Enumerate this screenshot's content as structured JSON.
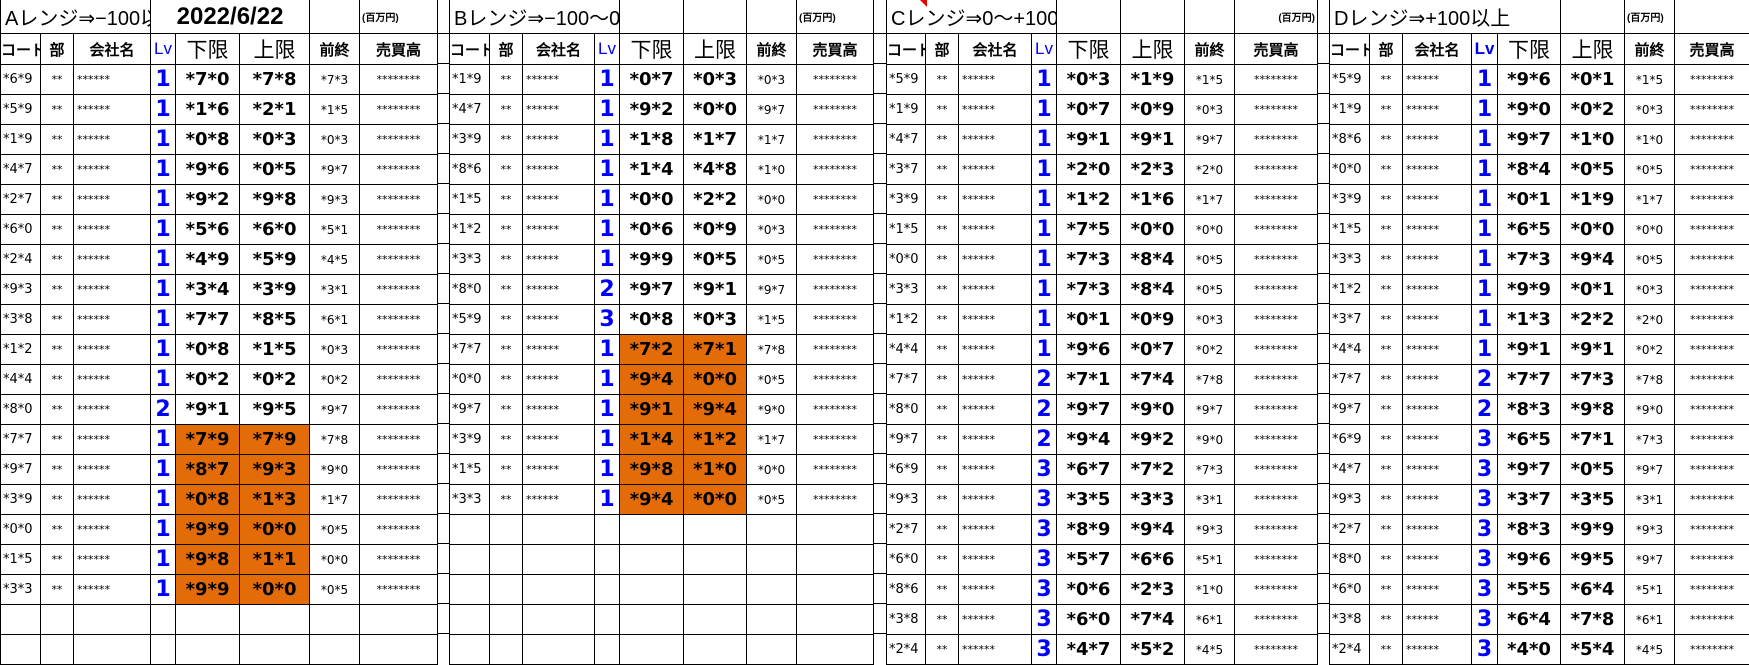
{
  "colors": {
    "highlight": "#e36c09",
    "lv": "#0000ff",
    "comment_marker": "#ee0000"
  },
  "headers": {
    "code": "コード",
    "bu": "部",
    "name": "会社名",
    "lv": "Lv",
    "lower": "下限",
    "upper": "上限",
    "prev": "前終",
    "volume": "売買高"
  },
  "blocks": [
    {
      "title": "Aレンジ⇒−100以",
      "date": "2022/6/22",
      "units": "(百万円)",
      "rows": [
        {
          "code": "*6*9",
          "bu": "**",
          "name": "******",
          "lv": "1",
          "lower": "*7*0",
          "upper": "*7*8",
          "prev": "*7*3",
          "volume": "********",
          "highlight": false
        },
        {
          "code": "*5*9",
          "bu": "**",
          "name": "******",
          "lv": "1",
          "lower": "*1*6",
          "upper": "*2*1",
          "prev": "*1*5",
          "volume": "********",
          "highlight": false
        },
        {
          "code": "*1*9",
          "bu": "**",
          "name": "******",
          "lv": "1",
          "lower": "*0*8",
          "upper": "*0*3",
          "prev": "*0*3",
          "volume": "********",
          "highlight": false
        },
        {
          "code": "*4*7",
          "bu": "**",
          "name": "******",
          "lv": "1",
          "lower": "*9*6",
          "upper": "*0*5",
          "prev": "*9*7",
          "volume": "********",
          "highlight": false
        },
        {
          "code": "*2*7",
          "bu": "**",
          "name": "******",
          "lv": "1",
          "lower": "*9*2",
          "upper": "*9*8",
          "prev": "*9*3",
          "volume": "********",
          "highlight": false
        },
        {
          "code": "*6*0",
          "bu": "**",
          "name": "******",
          "lv": "1",
          "lower": "*5*6",
          "upper": "*6*0",
          "prev": "*5*1",
          "volume": "********",
          "highlight": false
        },
        {
          "code": "*2*4",
          "bu": "**",
          "name": "******",
          "lv": "1",
          "lower": "*4*9",
          "upper": "*5*9",
          "prev": "*4*5",
          "volume": "********",
          "highlight": false
        },
        {
          "code": "*9*3",
          "bu": "**",
          "name": "******",
          "lv": "1",
          "lower": "*3*4",
          "upper": "*3*9",
          "prev": "*3*1",
          "volume": "********",
          "highlight": false
        },
        {
          "code": "*3*8",
          "bu": "**",
          "name": "******",
          "lv": "1",
          "lower": "*7*7",
          "upper": "*8*5",
          "prev": "*6*1",
          "volume": "********",
          "highlight": false
        },
        {
          "code": "*1*2",
          "bu": "**",
          "name": "******",
          "lv": "1",
          "lower": "*0*8",
          "upper": "*1*5",
          "prev": "*0*3",
          "volume": "********",
          "highlight": false
        },
        {
          "code": "*4*4",
          "bu": "**",
          "name": "******",
          "lv": "1",
          "lower": "*0*2",
          "upper": "*0*2",
          "prev": "*0*2",
          "volume": "********",
          "highlight": false
        },
        {
          "code": "*8*0",
          "bu": "**",
          "name": "******",
          "lv": "2",
          "lower": "*9*1",
          "upper": "*9*5",
          "prev": "*9*7",
          "volume": "********",
          "highlight": false
        },
        {
          "code": "*7*7",
          "bu": "**",
          "name": "******",
          "lv": "1",
          "lower": "*7*9",
          "upper": "*7*9",
          "prev": "*7*8",
          "volume": "********",
          "highlight": true
        },
        {
          "code": "*9*7",
          "bu": "**",
          "name": "******",
          "lv": "1",
          "lower": "*8*7",
          "upper": "*9*3",
          "prev": "*9*0",
          "volume": "********",
          "highlight": true
        },
        {
          "code": "*3*9",
          "bu": "**",
          "name": "******",
          "lv": "1",
          "lower": "*0*8",
          "upper": "*1*3",
          "prev": "*1*7",
          "volume": "********",
          "highlight": true
        },
        {
          "code": "*0*0",
          "bu": "**",
          "name": "******",
          "lv": "1",
          "lower": "*9*9",
          "upper": "*0*0",
          "prev": "*0*5",
          "volume": "********",
          "highlight": true
        },
        {
          "code": "*1*5",
          "bu": "**",
          "name": "******",
          "lv": "1",
          "lower": "*9*8",
          "upper": "*1*1",
          "prev": "*0*0",
          "volume": "********",
          "highlight": true
        },
        {
          "code": "*3*3",
          "bu": "**",
          "name": "******",
          "lv": "1",
          "lower": "*9*9",
          "upper": "*0*0",
          "prev": "*0*5",
          "volume": "********",
          "highlight": true
        }
      ]
    },
    {
      "title": "Bレンジ⇒−100〜0",
      "units": "(百万円)",
      "rows": [
        {
          "code": "*1*9",
          "bu": "**",
          "name": "******",
          "lv": "1",
          "lower": "*0*7",
          "upper": "*0*3",
          "prev": "*0*3",
          "volume": "********",
          "highlight": false
        },
        {
          "code": "*4*7",
          "bu": "**",
          "name": "******",
          "lv": "1",
          "lower": "*9*2",
          "upper": "*0*0",
          "prev": "*9*7",
          "volume": "********",
          "highlight": false
        },
        {
          "code": "*3*9",
          "bu": "**",
          "name": "******",
          "lv": "1",
          "lower": "*1*8",
          "upper": "*1*7",
          "prev": "*1*7",
          "volume": "********",
          "highlight": false
        },
        {
          "code": "*8*6",
          "bu": "**",
          "name": "******",
          "lv": "1",
          "lower": "*1*4",
          "upper": "*4*8",
          "prev": "*1*0",
          "volume": "********",
          "highlight": false
        },
        {
          "code": "*1*5",
          "bu": "**",
          "name": "******",
          "lv": "1",
          "lower": "*0*0",
          "upper": "*2*2",
          "prev": "*0*0",
          "volume": "********",
          "highlight": false
        },
        {
          "code": "*1*2",
          "bu": "**",
          "name": "******",
          "lv": "1",
          "lower": "*0*6",
          "upper": "*0*9",
          "prev": "*0*3",
          "volume": "********",
          "highlight": false
        },
        {
          "code": "*3*3",
          "bu": "**",
          "name": "******",
          "lv": "1",
          "lower": "*9*9",
          "upper": "*0*5",
          "prev": "*0*5",
          "volume": "********",
          "highlight": false
        },
        {
          "code": "*8*0",
          "bu": "**",
          "name": "******",
          "lv": "2",
          "lower": "*9*7",
          "upper": "*9*1",
          "prev": "*9*7",
          "volume": "********",
          "highlight": false
        },
        {
          "code": "*5*9",
          "bu": "**",
          "name": "******",
          "lv": "3",
          "lower": "*0*8",
          "upper": "*0*3",
          "prev": "*1*5",
          "volume": "********",
          "highlight": false
        },
        {
          "code": "*7*7",
          "bu": "**",
          "name": "******",
          "lv": "1",
          "lower": "*7*2",
          "upper": "*7*1",
          "prev": "*7*8",
          "volume": "********",
          "highlight": true
        },
        {
          "code": "*0*0",
          "bu": "**",
          "name": "******",
          "lv": "1",
          "lower": "*9*4",
          "upper": "*0*0",
          "prev": "*0*5",
          "volume": "********",
          "highlight": true
        },
        {
          "code": "*9*7",
          "bu": "**",
          "name": "******",
          "lv": "1",
          "lower": "*9*1",
          "upper": "*9*4",
          "prev": "*9*0",
          "volume": "********",
          "highlight": true
        },
        {
          "code": "*3*9",
          "bu": "**",
          "name": "******",
          "lv": "1",
          "lower": "*1*4",
          "upper": "*1*2",
          "prev": "*1*7",
          "volume": "********",
          "highlight": true
        },
        {
          "code": "*1*5",
          "bu": "**",
          "name": "******",
          "lv": "1",
          "lower": "*9*8",
          "upper": "*1*0",
          "prev": "*0*0",
          "volume": "********",
          "highlight": true
        },
        {
          "code": "*3*3",
          "bu": "**",
          "name": "******",
          "lv": "1",
          "lower": "*9*4",
          "upper": "*0*0",
          "prev": "*0*5",
          "volume": "********",
          "highlight": true
        }
      ]
    },
    {
      "title": "Cレンジ⇒0〜+100",
      "units": "(百万円)",
      "rows": [
        {
          "code": "*5*9",
          "bu": "**",
          "name": "******",
          "lv": "1",
          "lower": "*0*3",
          "upper": "*1*9",
          "prev": "*1*5",
          "volume": "********",
          "highlight": false
        },
        {
          "code": "*1*9",
          "bu": "**",
          "name": "******",
          "lv": "1",
          "lower": "*0*7",
          "upper": "*0*9",
          "prev": "*0*3",
          "volume": "********",
          "highlight": false
        },
        {
          "code": "*4*7",
          "bu": "**",
          "name": "******",
          "lv": "1",
          "lower": "*9*1",
          "upper": "*9*1",
          "prev": "*9*7",
          "volume": "********",
          "highlight": false
        },
        {
          "code": "*3*7",
          "bu": "**",
          "name": "******",
          "lv": "1",
          "lower": "*2*0",
          "upper": "*2*3",
          "prev": "*2*0",
          "volume": "********",
          "highlight": false
        },
        {
          "code": "*3*9",
          "bu": "**",
          "name": "******",
          "lv": "1",
          "lower": "*1*2",
          "upper": "*1*6",
          "prev": "*1*7",
          "volume": "********",
          "highlight": false
        },
        {
          "code": "*1*5",
          "bu": "**",
          "name": "******",
          "lv": "1",
          "lower": "*7*5",
          "upper": "*0*0",
          "prev": "*0*0",
          "volume": "********",
          "highlight": false
        },
        {
          "code": "*0*0",
          "bu": "**",
          "name": "******",
          "lv": "1",
          "lower": "*7*3",
          "upper": "*8*4",
          "prev": "*0*5",
          "volume": "********",
          "highlight": false
        },
        {
          "code": "*3*3",
          "bu": "**",
          "name": "******",
          "lv": "1",
          "lower": "*7*3",
          "upper": "*8*4",
          "prev": "*0*5",
          "volume": "********",
          "highlight": false
        },
        {
          "code": "*1*2",
          "bu": "**",
          "name": "******",
          "lv": "1",
          "lower": "*0*1",
          "upper": "*0*9",
          "prev": "*0*3",
          "volume": "********",
          "highlight": false
        },
        {
          "code": "*4*4",
          "bu": "**",
          "name": "******",
          "lv": "1",
          "lower": "*9*6",
          "upper": "*0*7",
          "prev": "*0*2",
          "volume": "********",
          "highlight": false
        },
        {
          "code": "*7*7",
          "bu": "**",
          "name": "******",
          "lv": "2",
          "lower": "*7*1",
          "upper": "*7*4",
          "prev": "*7*8",
          "volume": "********",
          "highlight": false
        },
        {
          "code": "*8*0",
          "bu": "**",
          "name": "******",
          "lv": "2",
          "lower": "*9*7",
          "upper": "*9*0",
          "prev": "*9*7",
          "volume": "********",
          "highlight": false
        },
        {
          "code": "*9*7",
          "bu": "**",
          "name": "******",
          "lv": "2",
          "lower": "*9*4",
          "upper": "*9*2",
          "prev": "*9*0",
          "volume": "********",
          "highlight": false
        },
        {
          "code": "*6*9",
          "bu": "**",
          "name": "******",
          "lv": "3",
          "lower": "*6*7",
          "upper": "*7*2",
          "prev": "*7*3",
          "volume": "********",
          "highlight": false
        },
        {
          "code": "*9*3",
          "bu": "**",
          "name": "******",
          "lv": "3",
          "lower": "*3*5",
          "upper": "*3*3",
          "prev": "*3*1",
          "volume": "********",
          "highlight": false
        },
        {
          "code": "*2*7",
          "bu": "**",
          "name": "******",
          "lv": "3",
          "lower": "*8*9",
          "upper": "*9*4",
          "prev": "*9*3",
          "volume": "********",
          "highlight": false
        },
        {
          "code": "*6*0",
          "bu": "**",
          "name": "******",
          "lv": "3",
          "lower": "*5*7",
          "upper": "*6*6",
          "prev": "*5*1",
          "volume": "********",
          "highlight": false
        },
        {
          "code": "*8*6",
          "bu": "**",
          "name": "******",
          "lv": "3",
          "lower": "*0*6",
          "upper": "*2*3",
          "prev": "*1*0",
          "volume": "********",
          "highlight": false
        },
        {
          "code": "*3*8",
          "bu": "**",
          "name": "******",
          "lv": "3",
          "lower": "*6*0",
          "upper": "*7*4",
          "prev": "*6*1",
          "volume": "********",
          "highlight": false
        },
        {
          "code": "*2*4",
          "bu": "**",
          "name": "******",
          "lv": "3",
          "lower": "*4*7",
          "upper": "*5*2",
          "prev": "*4*5",
          "volume": "********",
          "highlight": false
        }
      ]
    },
    {
      "title": "Dレンジ⇒+100以上",
      "units": "(百万円)",
      "rows": [
        {
          "code": "*5*9",
          "bu": "**",
          "name": "******",
          "lv": "1",
          "lower": "*9*6",
          "upper": "*0*1",
          "prev": "*1*5",
          "volume": "********",
          "highlight": false
        },
        {
          "code": "*1*9",
          "bu": "**",
          "name": "******",
          "lv": "1",
          "lower": "*9*0",
          "upper": "*0*2",
          "prev": "*0*3",
          "volume": "********",
          "highlight": false
        },
        {
          "code": "*8*6",
          "bu": "**",
          "name": "******",
          "lv": "1",
          "lower": "*9*7",
          "upper": "*1*0",
          "prev": "*1*0",
          "volume": "********",
          "highlight": false
        },
        {
          "code": "*0*0",
          "bu": "**",
          "name": "******",
          "lv": "1",
          "lower": "*8*4",
          "upper": "*0*5",
          "prev": "*0*5",
          "volume": "********",
          "highlight": false
        },
        {
          "code": "*3*9",
          "bu": "**",
          "name": "******",
          "lv": "1",
          "lower": "*0*1",
          "upper": "*1*9",
          "prev": "*1*7",
          "volume": "********",
          "highlight": false
        },
        {
          "code": "*1*5",
          "bu": "**",
          "name": "******",
          "lv": "1",
          "lower": "*6*5",
          "upper": "*0*0",
          "prev": "*0*0",
          "volume": "********",
          "highlight": false
        },
        {
          "code": "*3*3",
          "bu": "**",
          "name": "******",
          "lv": "1",
          "lower": "*7*3",
          "upper": "*9*4",
          "prev": "*0*5",
          "volume": "********",
          "highlight": false
        },
        {
          "code": "*1*2",
          "bu": "**",
          "name": "******",
          "lv": "1",
          "lower": "*9*9",
          "upper": "*0*1",
          "prev": "*0*3",
          "volume": "********",
          "highlight": false
        },
        {
          "code": "*3*7",
          "bu": "**",
          "name": "******",
          "lv": "1",
          "lower": "*1*3",
          "upper": "*2*2",
          "prev": "*2*0",
          "volume": "********",
          "highlight": false
        },
        {
          "code": "*4*4",
          "bu": "**",
          "name": "******",
          "lv": "1",
          "lower": "*9*1",
          "upper": "*9*1",
          "prev": "*0*2",
          "volume": "********",
          "highlight": false
        },
        {
          "code": "*7*7",
          "bu": "**",
          "name": "******",
          "lv": "2",
          "lower": "*7*7",
          "upper": "*7*3",
          "prev": "*7*8",
          "volume": "********",
          "highlight": false
        },
        {
          "code": "*9*7",
          "bu": "**",
          "name": "******",
          "lv": "2",
          "lower": "*8*3",
          "upper": "*9*8",
          "prev": "*9*0",
          "volume": "********",
          "highlight": false
        },
        {
          "code": "*6*9",
          "bu": "**",
          "name": "******",
          "lv": "3",
          "lower": "*6*5",
          "upper": "*7*1",
          "prev": "*7*3",
          "volume": "********",
          "highlight": false
        },
        {
          "code": "*4*7",
          "bu": "**",
          "name": "******",
          "lv": "3",
          "lower": "*9*7",
          "upper": "*0*5",
          "prev": "*9*7",
          "volume": "********",
          "highlight": false
        },
        {
          "code": "*9*3",
          "bu": "**",
          "name": "******",
          "lv": "3",
          "lower": "*3*7",
          "upper": "*3*5",
          "prev": "*3*1",
          "volume": "********",
          "highlight": false
        },
        {
          "code": "*2*7",
          "bu": "**",
          "name": "******",
          "lv": "3",
          "lower": "*8*3",
          "upper": "*9*9",
          "prev": "*9*3",
          "volume": "********",
          "highlight": false
        },
        {
          "code": "*8*0",
          "bu": "**",
          "name": "******",
          "lv": "3",
          "lower": "*9*6",
          "upper": "*9*5",
          "prev": "*9*7",
          "volume": "********",
          "highlight": false
        },
        {
          "code": "*6*0",
          "bu": "**",
          "name": "******",
          "lv": "3",
          "lower": "*5*5",
          "upper": "*6*4",
          "prev": "*5*1",
          "volume": "********",
          "highlight": false
        },
        {
          "code": "*3*8",
          "bu": "**",
          "name": "******",
          "lv": "3",
          "lower": "*6*4",
          "upper": "*7*8",
          "prev": "*6*1",
          "volume": "********",
          "highlight": false
        },
        {
          "code": "*2*4",
          "bu": "**",
          "name": "******",
          "lv": "3",
          "lower": "*4*0",
          "upper": "*5*4",
          "prev": "*4*5",
          "volume": "********",
          "highlight": false
        }
      ]
    }
  ]
}
